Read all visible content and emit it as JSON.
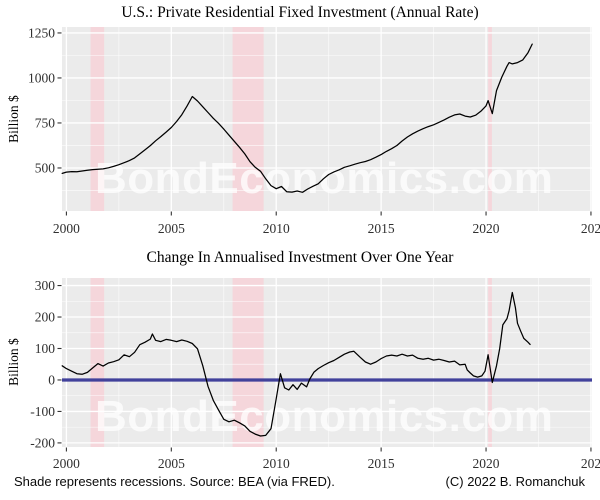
{
  "watermark": "BondEconomics.com",
  "footer": {
    "left": "Shade represents recessions. Source: BEA (via FRED).",
    "right": "(C) 2022 B. Romanchuk"
  },
  "colors": {
    "panel_bg": "#ebebeb",
    "grid_major": "#ffffff",
    "grid_minor": "#ffffff",
    "recession_shade": "#f5d6db",
    "series_line": "#000000",
    "zero_line": "#41419b",
    "tick_text": "#303030",
    "watermark_fill": "rgba(255,255,255,0.74)"
  },
  "chart_data": [
    {
      "type": "line",
      "title": "U.S.: Private Residential Fixed Investment (Annual Rate)",
      "ylabel": "Billion $",
      "xlim": [
        1999.79,
        2025.05
      ],
      "ylim": [
        261,
        1283
      ],
      "y_ticks": [
        500,
        750,
        1000,
        1250
      ],
      "y_minor": [
        375,
        625,
        875,
        1125
      ],
      "x_ticks": [
        2000,
        2005,
        2010,
        2015,
        2020,
        2025
      ],
      "x_tick_labels": [
        "2000",
        "2005",
        "2010",
        "2015",
        "2020",
        "202"
      ],
      "x_minor": [
        2002.5,
        2007.5,
        2012.5,
        2017.5,
        2022.5
      ],
      "recessions": [
        [
          2001.15,
          2001.8
        ],
        [
          2007.92,
          2009.4
        ],
        [
          2020.1,
          2020.28
        ]
      ],
      "zero_line": null,
      "points": [
        [
          1999.8,
          470
        ],
        [
          2000,
          477
        ],
        [
          2000.25,
          480
        ],
        [
          2000.5,
          479
        ],
        [
          2000.75,
          483
        ],
        [
          2001,
          487
        ],
        [
          2001.25,
          491
        ],
        [
          2001.5,
          493
        ],
        [
          2001.75,
          495
        ],
        [
          2002,
          501
        ],
        [
          2002.25,
          509
        ],
        [
          2002.5,
          518
        ],
        [
          2002.75,
          529
        ],
        [
          2003,
          541
        ],
        [
          2003.25,
          556
        ],
        [
          2003.5,
          578
        ],
        [
          2003.75,
          601
        ],
        [
          2004,
          624
        ],
        [
          2004.25,
          651
        ],
        [
          2004.5,
          674
        ],
        [
          2004.75,
          699
        ],
        [
          2005,
          725
        ],
        [
          2005.25,
          758
        ],
        [
          2005.5,
          796
        ],
        [
          2005.75,
          845
        ],
        [
          2006,
          897
        ],
        [
          2006.25,
          872
        ],
        [
          2006.5,
          840
        ],
        [
          2006.75,
          808
        ],
        [
          2007,
          776
        ],
        [
          2007.25,
          748
        ],
        [
          2007.5,
          716
        ],
        [
          2007.75,
          682
        ],
        [
          2008,
          648
        ],
        [
          2008.25,
          615
        ],
        [
          2008.5,
          578
        ],
        [
          2008.75,
          535
        ],
        [
          2009,
          504
        ],
        [
          2009.25,
          482
        ],
        [
          2009.5,
          440
        ],
        [
          2009.75,
          402
        ],
        [
          2010,
          385
        ],
        [
          2010.25,
          397
        ],
        [
          2010.5,
          368
        ],
        [
          2010.75,
          366
        ],
        [
          2011,
          372
        ],
        [
          2011.25,
          365
        ],
        [
          2011.5,
          383
        ],
        [
          2011.75,
          398
        ],
        [
          2012,
          412
        ],
        [
          2012.25,
          440
        ],
        [
          2012.5,
          464
        ],
        [
          2012.75,
          478
        ],
        [
          2013,
          490
        ],
        [
          2013.25,
          504
        ],
        [
          2013.5,
          512
        ],
        [
          2013.75,
          521
        ],
        [
          2014,
          529
        ],
        [
          2014.25,
          536
        ],
        [
          2014.5,
          546
        ],
        [
          2014.75,
          560
        ],
        [
          2015,
          574
        ],
        [
          2015.25,
          592
        ],
        [
          2015.5,
          607
        ],
        [
          2015.75,
          625
        ],
        [
          2016,
          650
        ],
        [
          2016.25,
          672
        ],
        [
          2016.5,
          690
        ],
        [
          2016.75,
          705
        ],
        [
          2017,
          718
        ],
        [
          2017.25,
          730
        ],
        [
          2017.5,
          740
        ],
        [
          2017.75,
          753
        ],
        [
          2018,
          767
        ],
        [
          2018.25,
          782
        ],
        [
          2018.5,
          795
        ],
        [
          2018.75,
          800
        ],
        [
          2019,
          788
        ],
        [
          2019.25,
          783
        ],
        [
          2019.5,
          793
        ],
        [
          2019.75,
          815
        ],
        [
          2020,
          845
        ],
        [
          2020.1,
          874
        ],
        [
          2020.3,
          802
        ],
        [
          2020.5,
          930
        ],
        [
          2020.75,
          1005
        ],
        [
          2021,
          1065
        ],
        [
          2021.1,
          1085
        ],
        [
          2021.25,
          1078
        ],
        [
          2021.5,
          1085
        ],
        [
          2021.75,
          1100
        ],
        [
          2022,
          1140
        ],
        [
          2022.2,
          1188
        ]
      ]
    },
    {
      "type": "line",
      "title": "Change In Annualised Investment Over One Year",
      "ylabel": "Billion $",
      "xlim": [
        1999.79,
        2025.05
      ],
      "ylim": [
        -213,
        324
      ],
      "y_ticks": [
        -200,
        -100,
        0,
        100,
        200,
        300
      ],
      "y_minor": [
        -150,
        -50,
        50,
        150,
        250
      ],
      "x_ticks": [
        2000,
        2005,
        2010,
        2015,
        2020,
        2025
      ],
      "x_tick_labels": [
        "2000",
        "2005",
        "2010",
        "2015",
        "2020",
        "202"
      ],
      "x_minor": [
        2002.5,
        2007.5,
        2012.5,
        2017.5,
        2022.5
      ],
      "recessions": [
        [
          2001.15,
          2001.8
        ],
        [
          2007.92,
          2009.4
        ],
        [
          2020.1,
          2020.28
        ]
      ],
      "zero_line": 0,
      "points": [
        [
          1999.8,
          45
        ],
        [
          2000,
          36
        ],
        [
          2000.25,
          28
        ],
        [
          2000.5,
          20
        ],
        [
          2000.75,
          18
        ],
        [
          2001,
          24
        ],
        [
          2001.25,
          38
        ],
        [
          2001.5,
          52
        ],
        [
          2001.75,
          44
        ],
        [
          2002,
          54
        ],
        [
          2002.25,
          58
        ],
        [
          2002.5,
          64
        ],
        [
          2002.75,
          80
        ],
        [
          2003,
          74
        ],
        [
          2003.25,
          88
        ],
        [
          2003.5,
          112
        ],
        [
          2003.75,
          120
        ],
        [
          2004,
          130
        ],
        [
          2004.1,
          146
        ],
        [
          2004.25,
          126
        ],
        [
          2004.5,
          122
        ],
        [
          2004.75,
          129
        ],
        [
          2005,
          126
        ],
        [
          2005.25,
          122
        ],
        [
          2005.5,
          127
        ],
        [
          2005.75,
          123
        ],
        [
          2006,
          116
        ],
        [
          2006.25,
          99
        ],
        [
          2006.5,
          45
        ],
        [
          2006.75,
          -20
        ],
        [
          2007,
          -65
        ],
        [
          2007.25,
          -95
        ],
        [
          2007.5,
          -125
        ],
        [
          2007.75,
          -133
        ],
        [
          2008,
          -128
        ],
        [
          2008.25,
          -136
        ],
        [
          2008.5,
          -146
        ],
        [
          2008.75,
          -163
        ],
        [
          2009,
          -172
        ],
        [
          2009.25,
          -178
        ],
        [
          2009.5,
          -176
        ],
        [
          2009.75,
          -155
        ],
        [
          2010,
          -60
        ],
        [
          2010.2,
          20
        ],
        [
          2010.4,
          -25
        ],
        [
          2010.6,
          -32
        ],
        [
          2010.8,
          -15
        ],
        [
          2011,
          -30
        ],
        [
          2011.2,
          -10
        ],
        [
          2011.45,
          -22
        ],
        [
          2011.6,
          3
        ],
        [
          2011.8,
          25
        ],
        [
          2012,
          36
        ],
        [
          2012.25,
          46
        ],
        [
          2012.5,
          55
        ],
        [
          2012.75,
          62
        ],
        [
          2013,
          72
        ],
        [
          2013.25,
          82
        ],
        [
          2013.5,
          89
        ],
        [
          2013.7,
          91
        ],
        [
          2014,
          72
        ],
        [
          2014.25,
          57
        ],
        [
          2014.5,
          50
        ],
        [
          2014.75,
          57
        ],
        [
          2015,
          68
        ],
        [
          2015.25,
          76
        ],
        [
          2015.5,
          79
        ],
        [
          2015.75,
          76
        ],
        [
          2016,
          82
        ],
        [
          2016.25,
          76
        ],
        [
          2016.5,
          79
        ],
        [
          2016.75,
          69
        ],
        [
          2017,
          66
        ],
        [
          2017.25,
          69
        ],
        [
          2017.5,
          63
        ],
        [
          2017.75,
          66
        ],
        [
          2018,
          62
        ],
        [
          2018.25,
          57
        ],
        [
          2018.5,
          60
        ],
        [
          2018.75,
          48
        ],
        [
          2019,
          50
        ],
        [
          2019.1,
          32
        ],
        [
          2019.25,
          22
        ],
        [
          2019.4,
          13
        ],
        [
          2019.6,
          9
        ],
        [
          2019.8,
          13
        ],
        [
          2019.95,
          28
        ],
        [
          2020.1,
          80
        ],
        [
          2020.3,
          -8
        ],
        [
          2020.5,
          45
        ],
        [
          2020.65,
          100
        ],
        [
          2020.8,
          175
        ],
        [
          2021,
          195
        ],
        [
          2021.1,
          220
        ],
        [
          2021.25,
          278
        ],
        [
          2021.4,
          230
        ],
        [
          2021.5,
          180
        ],
        [
          2021.65,
          155
        ],
        [
          2021.8,
          132
        ],
        [
          2022,
          120
        ],
        [
          2022.1,
          113
        ]
      ]
    }
  ]
}
